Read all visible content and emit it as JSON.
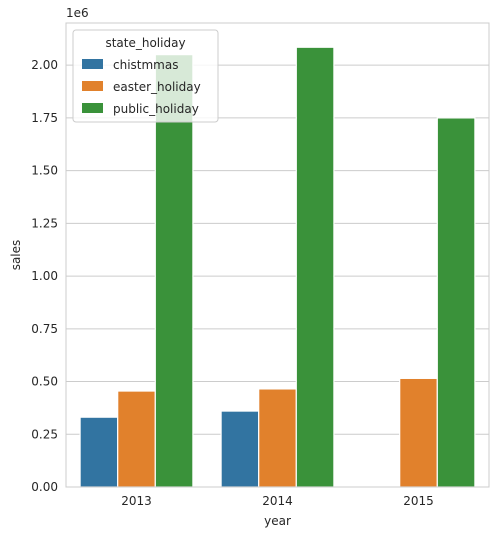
{
  "chart_data": {
    "type": "bar",
    "categories": [
      "2013",
      "2014",
      "2015"
    ],
    "series": [
      {
        "name": "chistmmas",
        "color": "#3274a1",
        "values": [
          331000,
          360000,
          null
        ]
      },
      {
        "name": "easter_holiday",
        "color": "#e1812c",
        "values": [
          455000,
          465000,
          515000
        ]
      },
      {
        "name": "public_holiday",
        "color": "#3a923a",
        "values": [
          2050000,
          2085000,
          1750000
        ]
      }
    ],
    "xlabel": "year",
    "ylabel": "sales",
    "offset_label": "1e6",
    "ylim": [
      0,
      2200000
    ],
    "yticks": [
      0,
      250000,
      500000,
      750000,
      1000000,
      1250000,
      1500000,
      1750000,
      2000000
    ],
    "ytick_labels": [
      "0.00",
      "0.25",
      "0.50",
      "0.75",
      "1.00",
      "1.25",
      "1.50",
      "1.75",
      "2.00"
    ],
    "grid": "y",
    "legend": {
      "title": "state_holiday",
      "placement": "top-left"
    }
  }
}
